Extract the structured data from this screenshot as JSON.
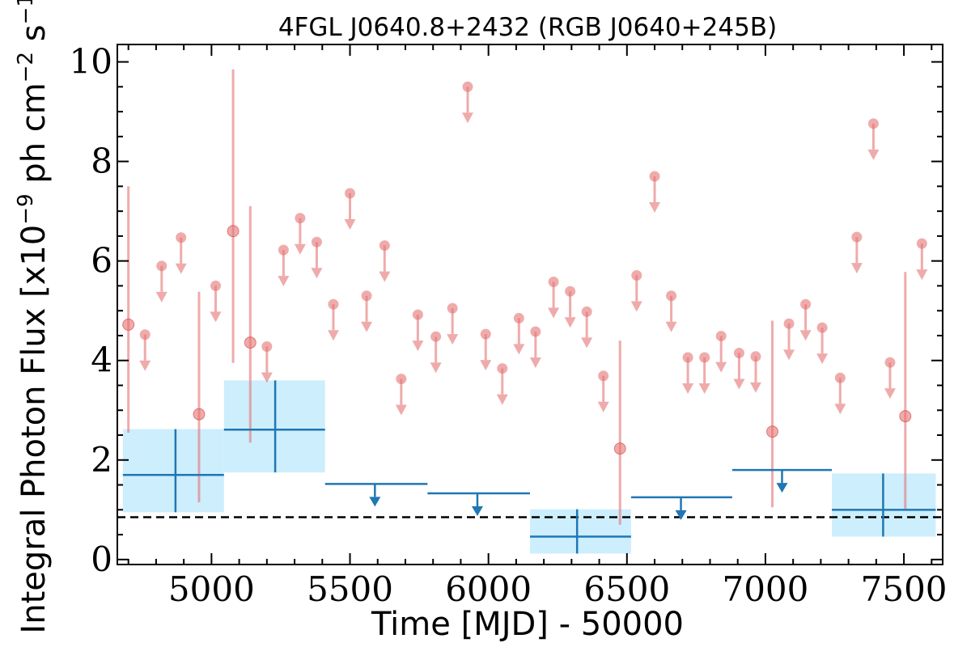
{
  "chart_data": {
    "type": "scatter",
    "title": "4FGL J0640.8+2432 (RGB J0640+245B)",
    "xlabel": "Time [MJD] - 50000",
    "ylabel": "Integral Photon Flux [x10^-9 ph cm^-2 s^-1]",
    "xlim": [
      4660,
      7640
    ],
    "ylim": [
      -0.1,
      10.35
    ],
    "x_ticks": [
      "5000",
      "5500",
      "6000",
      "6500",
      "7000",
      "7500"
    ],
    "y_ticks": [
      "0",
      "2",
      "4",
      "6",
      "8",
      "10"
    ],
    "grid": false,
    "baseline": 0.85,
    "colors": {
      "fine_bins": "#e57373",
      "coarse_bins": "#1f77b4",
      "coarse_band": "#cdeefc",
      "baseline": "#000000"
    },
    "fine_detections": [
      {
        "x": 4700,
        "y": 4.72,
        "ylo": 2.55,
        "yhi": 7.5
      },
      {
        "x": 4955,
        "y": 2.92,
        "ylo": 1.15,
        "yhi": 5.38
      },
      {
        "x": 5078,
        "y": 6.6,
        "ylo": 3.95,
        "yhi": 9.85
      },
      {
        "x": 5140,
        "y": 4.36,
        "ylo": 2.35,
        "yhi": 7.1
      },
      {
        "x": 6475,
        "y": 2.23,
        "ylo": 0.7,
        "yhi": 4.4
      },
      {
        "x": 7025,
        "y": 2.57,
        "ylo": 1.05,
        "yhi": 4.8
      },
      {
        "x": 7505,
        "y": 2.88,
        "ylo": 1.0,
        "yhi": 5.78
      }
    ],
    "fine_upper_limits": [
      {
        "x": 4760,
        "y": 4.52
      },
      {
        "x": 4820,
        "y": 5.9
      },
      {
        "x": 4890,
        "y": 6.47
      },
      {
        "x": 5015,
        "y": 5.5
      },
      {
        "x": 5200,
        "y": 4.28
      },
      {
        "x": 5260,
        "y": 6.22
      },
      {
        "x": 5320,
        "y": 6.86
      },
      {
        "x": 5380,
        "y": 6.38
      },
      {
        "x": 5440,
        "y": 5.13
      },
      {
        "x": 5500,
        "y": 7.36
      },
      {
        "x": 5560,
        "y": 5.3
      },
      {
        "x": 5625,
        "y": 6.31
      },
      {
        "x": 5685,
        "y": 3.63
      },
      {
        "x": 5745,
        "y": 4.92
      },
      {
        "x": 5810,
        "y": 4.48
      },
      {
        "x": 5870,
        "y": 5.05
      },
      {
        "x": 5925,
        "y": 9.5
      },
      {
        "x": 5990,
        "y": 4.53
      },
      {
        "x": 6050,
        "y": 3.84
      },
      {
        "x": 6110,
        "y": 4.85
      },
      {
        "x": 6170,
        "y": 4.58
      },
      {
        "x": 6235,
        "y": 5.58
      },
      {
        "x": 6295,
        "y": 5.39
      },
      {
        "x": 6355,
        "y": 4.98
      },
      {
        "x": 6415,
        "y": 3.69
      },
      {
        "x": 6535,
        "y": 5.71
      },
      {
        "x": 6600,
        "y": 7.7
      },
      {
        "x": 6660,
        "y": 5.3
      },
      {
        "x": 6720,
        "y": 4.06
      },
      {
        "x": 6780,
        "y": 4.06
      },
      {
        "x": 6840,
        "y": 4.49
      },
      {
        "x": 6905,
        "y": 4.15
      },
      {
        "x": 6965,
        "y": 4.08
      },
      {
        "x": 7085,
        "y": 4.74
      },
      {
        "x": 7145,
        "y": 5.13
      },
      {
        "x": 7205,
        "y": 4.66
      },
      {
        "x": 7270,
        "y": 3.65
      },
      {
        "x": 7330,
        "y": 6.48
      },
      {
        "x": 7390,
        "y": 8.76
      },
      {
        "x": 7450,
        "y": 3.96
      },
      {
        "x": 7565,
        "y": 6.35
      }
    ],
    "coarse_detections": [
      {
        "x": 4870,
        "xmin": 4680,
        "xmax": 5045,
        "y": 1.7,
        "ylo": 0.95,
        "yhi": 2.62
      },
      {
        "x": 5230,
        "xmin": 5045,
        "xmax": 5410,
        "y": 2.61,
        "ylo": 1.75,
        "yhi": 3.6
      },
      {
        "x": 6320,
        "xmin": 6150,
        "xmax": 6515,
        "y": 0.46,
        "ylo": 0.12,
        "yhi": 1.01
      },
      {
        "x": 7425,
        "xmin": 7240,
        "xmax": 7615,
        "y": 1.0,
        "ylo": 0.46,
        "yhi": 1.73
      }
    ],
    "coarse_upper_limits": [
      {
        "x": 5590,
        "xmin": 5410,
        "xmax": 5780,
        "y": 1.52
      },
      {
        "x": 5960,
        "xmin": 5780,
        "xmax": 6150,
        "y": 1.33
      },
      {
        "x": 6695,
        "xmin": 6515,
        "xmax": 6880,
        "y": 1.25
      },
      {
        "x": 7060,
        "xmin": 6880,
        "xmax": 7240,
        "y": 1.8
      }
    ]
  }
}
